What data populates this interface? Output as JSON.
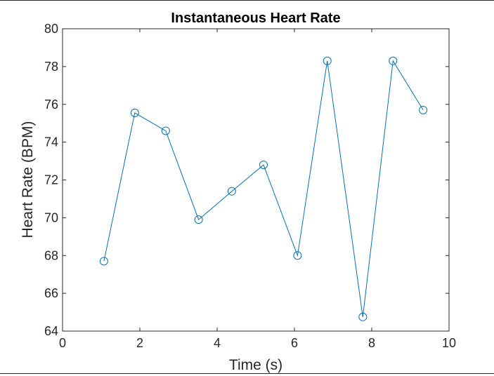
{
  "chart_data": {
    "type": "line",
    "title": "Instantaneous Heart Rate",
    "xlabel": "Time (s)",
    "ylabel": "Heart Rate (BPM)",
    "xlim": [
      0,
      10
    ],
    "ylim": [
      64,
      80
    ],
    "xticks": [
      0,
      2,
      4,
      6,
      8,
      10
    ],
    "yticks": [
      64,
      66,
      68,
      70,
      72,
      74,
      76,
      78,
      80
    ],
    "grid": false,
    "marker": "circle",
    "series": [
      {
        "color": "#0072BD",
        "x": [
          1.07,
          1.87,
          2.67,
          3.52,
          4.38,
          5.2,
          6.08,
          6.85,
          7.77,
          8.55,
          9.33
        ],
        "y": [
          67.7,
          75.55,
          74.6,
          69.9,
          71.4,
          72.8,
          68.0,
          78.3,
          64.75,
          78.3,
          75.7
        ]
      }
    ]
  }
}
